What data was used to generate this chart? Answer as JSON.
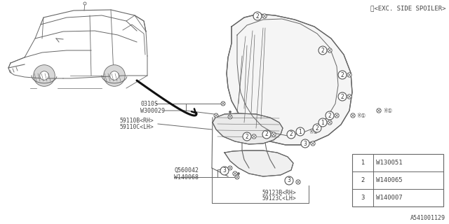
{
  "bg_color": "#ffffff",
  "title_note": "※<EXC. SIDE SPOILER>",
  "diagram_id": "A541001129",
  "line_color": "#666666",
  "text_color": "#444444",
  "legend": [
    {
      "num": "1",
      "code": "W130051"
    },
    {
      "num": "2",
      "code": "W140065"
    },
    {
      "num": "3",
      "code": "W140007"
    }
  ],
  "labels": {
    "part1a": "59110B<RH>",
    "part1b": "59110C<LH>",
    "part2a": "59123B<RH>",
    "part2b": "59123C<LH>",
    "p0310S": "0310S",
    "pW300029": "W300029",
    "pQ560042": "Q560042",
    "pW140068": "W140068"
  }
}
